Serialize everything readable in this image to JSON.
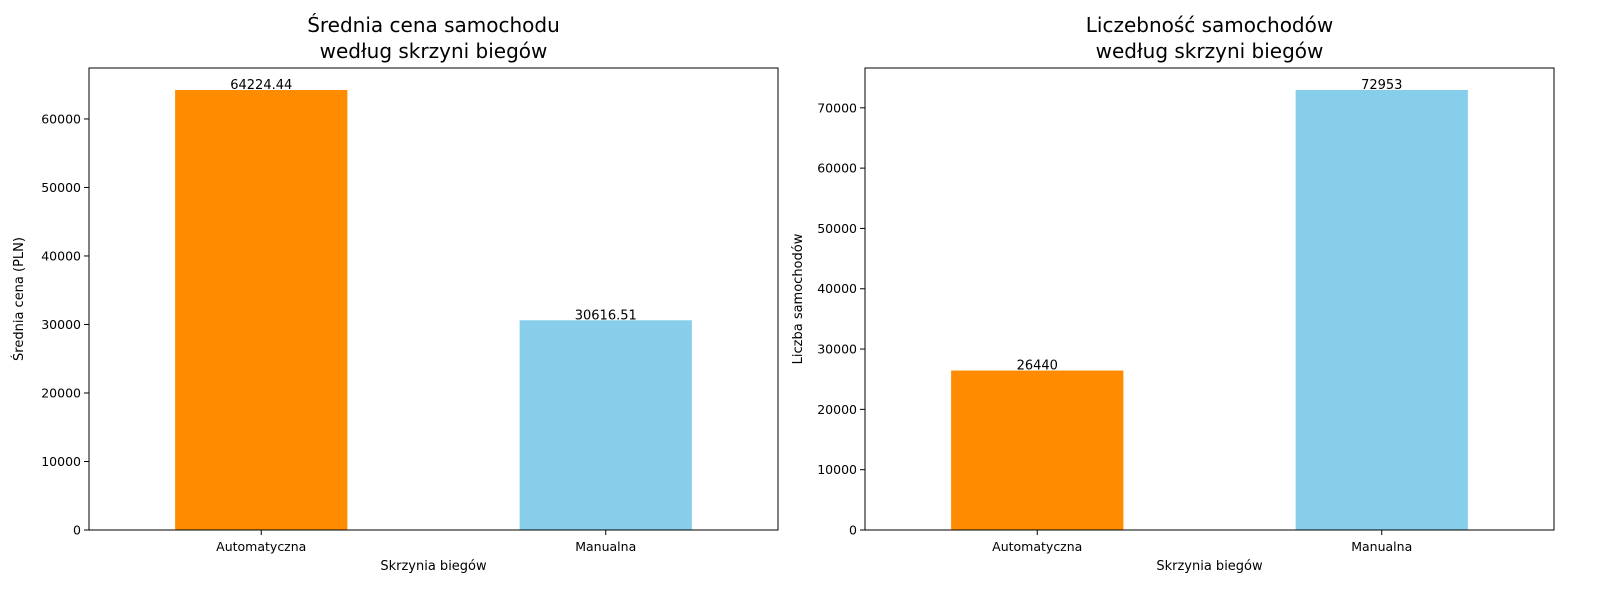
{
  "chart_data": [
    {
      "type": "bar",
      "title": [
        "Średnia cena samochodu",
        "według skrzyni biegów"
      ],
      "xlabel": "Skrzynia biegów",
      "ylabel": "Średnia cena (PLN)",
      "categories": [
        "Automatyczna",
        "Manualna"
      ],
      "values": [
        64224.44,
        30616.51
      ],
      "value_labels": [
        "64224.44",
        "30616.51"
      ],
      "colors": [
        "#ff8c00",
        "#87ceeb"
      ],
      "ylim": [
        0,
        67436.66
      ],
      "yticks": [
        0,
        10000,
        20000,
        30000,
        40000,
        50000,
        60000
      ],
      "grid": false,
      "legend": "none"
    },
    {
      "type": "bar",
      "title": [
        "Liczebność samochodów",
        "według skrzyni biegów"
      ],
      "xlabel": "Skrzynia biegów",
      "ylabel": "Liczba samochodów",
      "categories": [
        "Automatyczna",
        "Manualna"
      ],
      "values": [
        26440,
        72953
      ],
      "value_labels": [
        "26440",
        "72953"
      ],
      "colors": [
        "#ff8c00",
        "#87ceeb"
      ],
      "ylim": [
        0,
        76600.65
      ],
      "yticks": [
        0,
        10000,
        20000,
        30000,
        40000,
        50000,
        60000,
        70000
      ],
      "grid": false,
      "legend": "none"
    }
  ]
}
